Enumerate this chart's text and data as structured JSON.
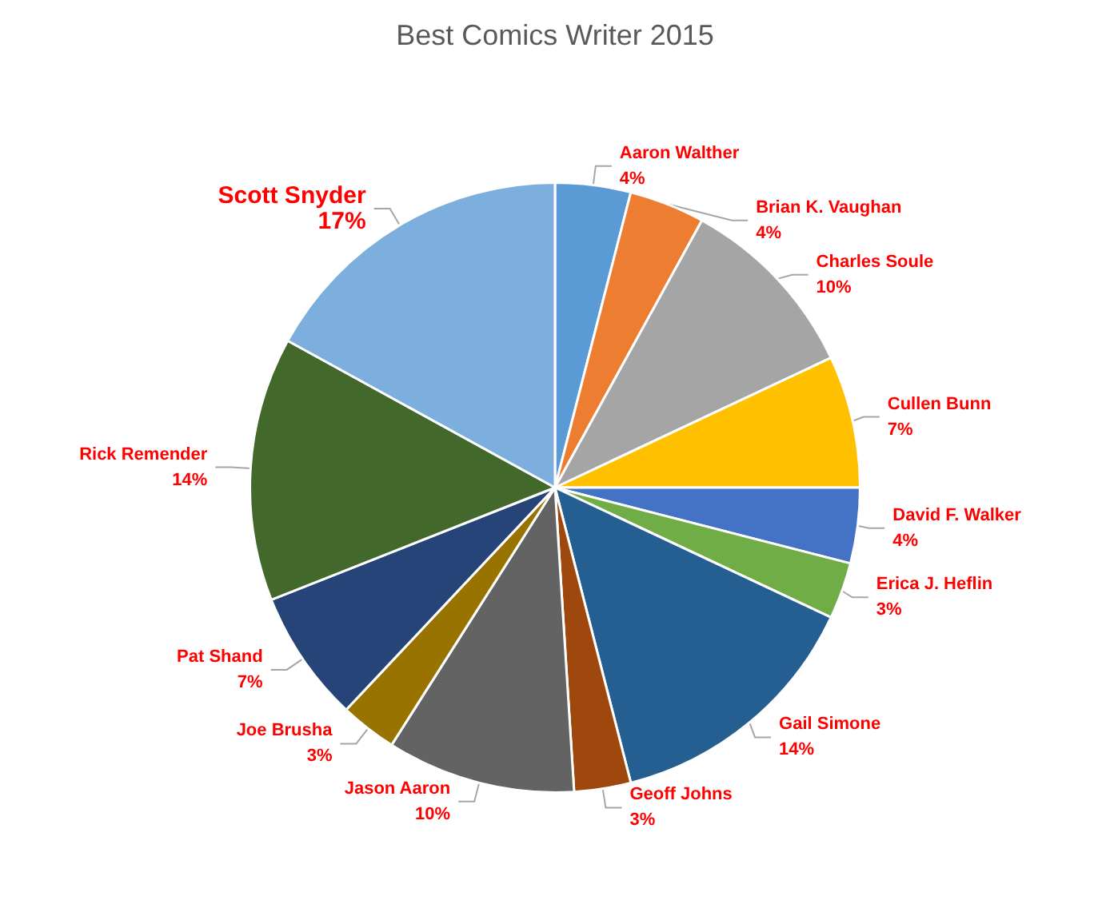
{
  "chart_data": {
    "type": "pie",
    "title": "Best Comics Writer 2015",
    "categories": [
      "Aaron Walther",
      "Brian K. Vaughan",
      "Charles Soule",
      "Cullen Bunn",
      "David F. Walker",
      "Erica J. Heflin",
      "Gail Simone",
      "Geoff Johns",
      "Jason Aaron",
      "Joe Brusha",
      "Pat Shand",
      "Rick Remender",
      "Scott Snyder"
    ],
    "values": [
      4,
      4,
      10,
      7,
      4,
      3,
      14,
      3,
      10,
      3,
      7,
      14,
      17
    ],
    "colors": [
      "#5b9bd5",
      "#ed7d31",
      "#a5a5a5",
      "#ffc000",
      "#4472c4",
      "#70ad47",
      "#255e91",
      "#9e480e",
      "#636363",
      "#997300",
      "#264478",
      "#43682b",
      "#7cafdd"
    ],
    "value_labels": [
      "4%",
      "4%",
      "10%",
      "7%",
      "4%",
      "3%",
      "14%",
      "3%",
      "10%",
      "3%",
      "7%",
      "14%",
      "17%"
    ],
    "legend": false
  }
}
